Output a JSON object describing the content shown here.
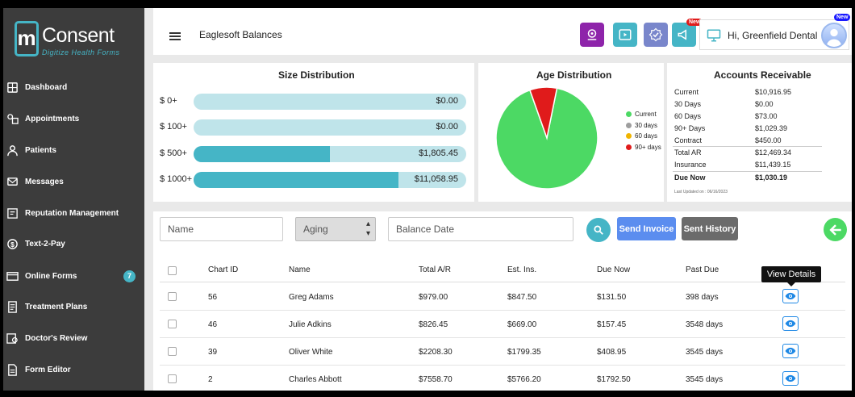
{
  "brand": {
    "name": "Consent",
    "initial": "m",
    "tagline": "Digitize Health Forms",
    "accent": "#45b5c6"
  },
  "sidebar": {
    "items": [
      {
        "label": "Dashboard",
        "icon": "dashboard-icon"
      },
      {
        "label": "Appointments",
        "icon": "appointments-icon"
      },
      {
        "label": "Patients",
        "icon": "patients-icon"
      },
      {
        "label": "Messages",
        "icon": "messages-icon"
      },
      {
        "label": "Reputation Management",
        "icon": "reputation-icon"
      },
      {
        "label": "Text-2-Pay",
        "icon": "dollar-icon"
      },
      {
        "label": "Online Forms",
        "icon": "forms-icon",
        "badge": "7"
      },
      {
        "label": "Treatment Plans",
        "icon": "treatment-icon"
      },
      {
        "label": "Doctor's Review",
        "icon": "review-icon"
      },
      {
        "label": "Form Editor",
        "icon": "editor-icon"
      }
    ]
  },
  "header": {
    "title": "Eaglesoft Balances",
    "new_badge": "New",
    "greeting": "Hi,  Greenfield Dental",
    "buttons": [
      {
        "icon": "support-icon",
        "color": "#8e24aa"
      },
      {
        "icon": "video-icon",
        "color": "#45b5c6"
      },
      {
        "icon": "verified-icon",
        "color": "#7986cb"
      },
      {
        "icon": "megaphone-icon",
        "color": "#45b5c6"
      }
    ]
  },
  "size_distribution": {
    "title": "Size Distribution",
    "rows": [
      {
        "label": "$ 0+",
        "value": "$0.00",
        "fill": 0
      },
      {
        "label": "$ 100+",
        "value": "$0.00",
        "fill": 0
      },
      {
        "label": "$ 500+",
        "value": "$1,805.45",
        "fill": 0.5
      },
      {
        "label": "$ 1000+",
        "value": "$11,058.95",
        "fill": 0.75
      }
    ]
  },
  "age_distribution": {
    "title": "Age Distribution",
    "legend": [
      {
        "label": "Current",
        "color": "#4cd964"
      },
      {
        "label": "30 days",
        "color": "#9e9e9e"
      },
      {
        "label": "60 days",
        "color": "#f0b400"
      },
      {
        "label": "90+ days",
        "color": "#e01b1b"
      }
    ],
    "slices": [
      {
        "label": "Current",
        "value": 10916.95
      },
      {
        "label": "90+ days",
        "value": 1029.39
      }
    ]
  },
  "accounts_receivable": {
    "title": "Accounts Receivable",
    "rows": [
      {
        "label": "Current",
        "value": "$10,916.95"
      },
      {
        "label": "30 Days",
        "value": "$0.00"
      },
      {
        "label": "60 Days",
        "value": "$73.00"
      },
      {
        "label": "90+ Days",
        "value": "$1,029.39"
      },
      {
        "label": "Contract",
        "value": "$450.00"
      },
      {
        "label": "Total AR",
        "value": "$12,469.34"
      },
      {
        "label": "Insurance",
        "value": "$11,439.15"
      },
      {
        "label": "Due Now",
        "value": "$1,030.19"
      }
    ],
    "updated": "Last Updated on : 06/16/2023"
  },
  "filters": {
    "name_placeholder": "Name",
    "aging_value": "Aging",
    "balance_date_placeholder": "Balance Date",
    "send_invoice": "Send Invoice",
    "sent_history": "Sent History"
  },
  "table": {
    "columns": [
      "Chart ID",
      "Name",
      "Total A/R",
      "Est. Ins.",
      "Due Now",
      "Past Due"
    ],
    "rows": [
      [
        "56",
        "Greg Adams",
        "$979.00",
        "$847.50",
        "$131.50",
        "398 days"
      ],
      [
        "46",
        "Julie Adkins",
        "$826.45",
        "$669.00",
        "$157.45",
        "3548 days"
      ],
      [
        "39",
        "Oliver White",
        "$2208.30",
        "$1799.35",
        "$408.95",
        "3545 days"
      ],
      [
        "2",
        "Charles Abbott",
        "$7558.70",
        "$5766.20",
        "$1792.50",
        "3545 days"
      ]
    ],
    "tooltip": "View Details"
  }
}
